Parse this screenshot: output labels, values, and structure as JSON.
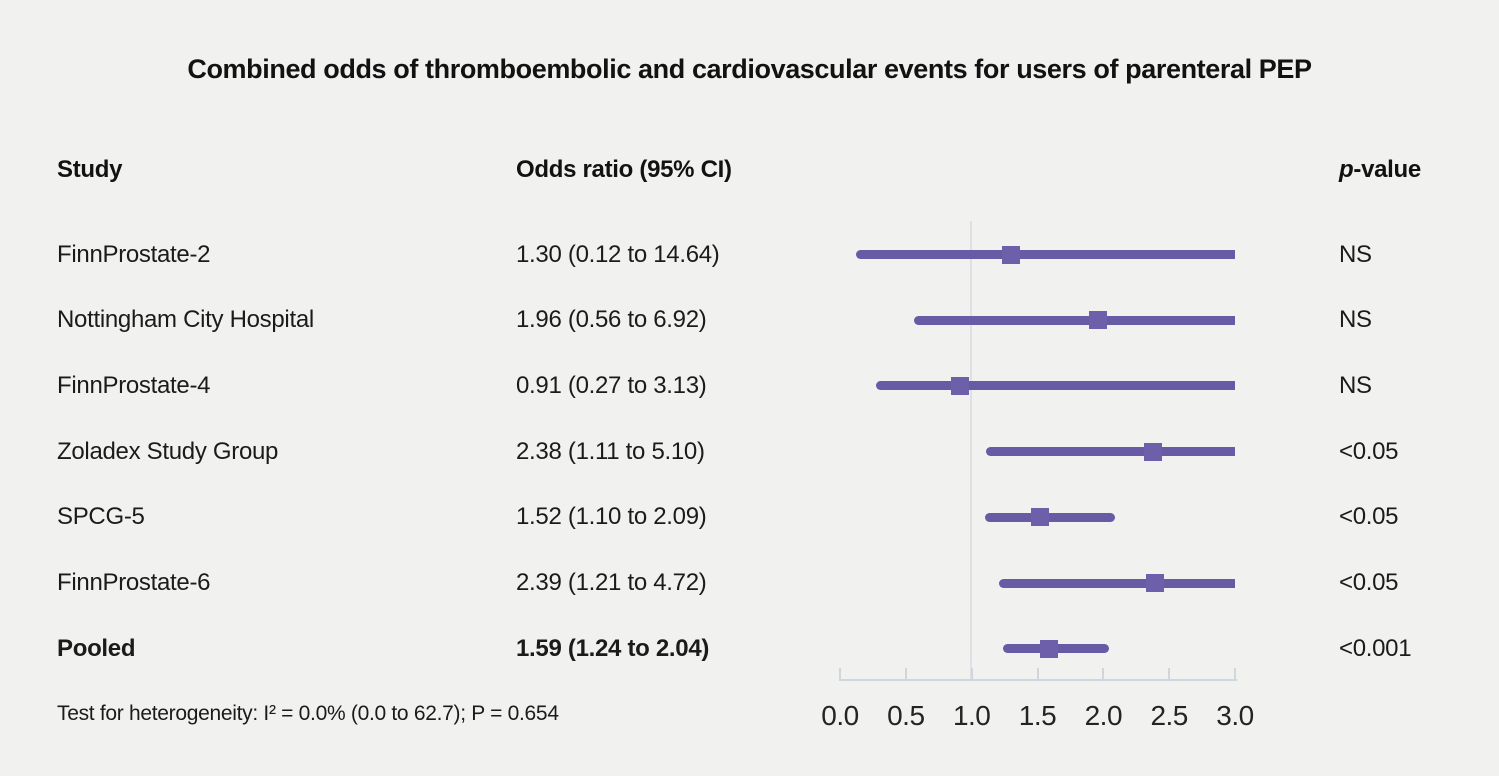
{
  "title": "Combined odds of thromboembolic and cardiovascular events for users of parenteral PEP",
  "columns": {
    "study": "Study",
    "odds_ratio": "Odds ratio (95% CI)",
    "p_italic": "p",
    "p_rest": "-value"
  },
  "footer": "Test for heterogeneity: I² = 0.0% (0.0 to 62.7); P = 0.654",
  "colors": {
    "background": "#f1f1f0",
    "ci_line": "#685ba5",
    "marker": "#6e5fab",
    "reference_line": "#dde1e6",
    "axis": "#cfd6dc",
    "text": "#1b1b1b"
  },
  "chart_data": {
    "type": "forest",
    "title": "Combined odds of thromboembolic and cardiovascular events for users of parenteral PEP",
    "x_axis": {
      "range": [
        0.0,
        3.0
      ],
      "tick_labels": [
        "0.0",
        "0.5",
        "1.0",
        "1.5",
        "2.0",
        "2.5",
        "3.0"
      ],
      "tick_values": [
        0.0,
        0.5,
        1.0,
        1.5,
        2.0,
        2.5,
        3.0
      ],
      "reference_value": 1.0
    },
    "studies": [
      {
        "study": "FinnProstate-2",
        "or_label": "1.30 (0.12 to 14.64)",
        "or": 1.3,
        "ci_low": 0.12,
        "ci_high": 14.64,
        "p_value": "NS",
        "bold": false
      },
      {
        "study": "Nottingham City Hospital",
        "or_label": "1.96 (0.56 to 6.92)",
        "or": 1.96,
        "ci_low": 0.56,
        "ci_high": 6.92,
        "p_value": "NS",
        "bold": false
      },
      {
        "study": "FinnProstate-4",
        "or_label": "0.91 (0.27 to 3.13)",
        "or": 0.91,
        "ci_low": 0.27,
        "ci_high": 3.13,
        "p_value": "NS",
        "bold": false
      },
      {
        "study": "Zoladex Study Group",
        "or_label": "2.38 (1.11 to 5.10)",
        "or": 2.38,
        "ci_low": 1.11,
        "ci_high": 5.1,
        "p_value": "<0.05",
        "bold": false
      },
      {
        "study": "SPCG-5",
        "or_label": "1.52 (1.10 to 2.09)",
        "or": 1.52,
        "ci_low": 1.1,
        "ci_high": 2.09,
        "p_value": "<0.05",
        "bold": false
      },
      {
        "study": "FinnProstate-6",
        "or_label": "2.39 (1.21 to 4.72)",
        "or": 2.39,
        "ci_low": 1.21,
        "ci_high": 4.72,
        "p_value": "<0.05",
        "bold": false
      },
      {
        "study": "Pooled",
        "or_label": "1.59 (1.24 to 2.04)",
        "or": 1.59,
        "ci_low": 1.24,
        "ci_high": 2.04,
        "p_value": "<0.001",
        "bold": true
      }
    ]
  }
}
